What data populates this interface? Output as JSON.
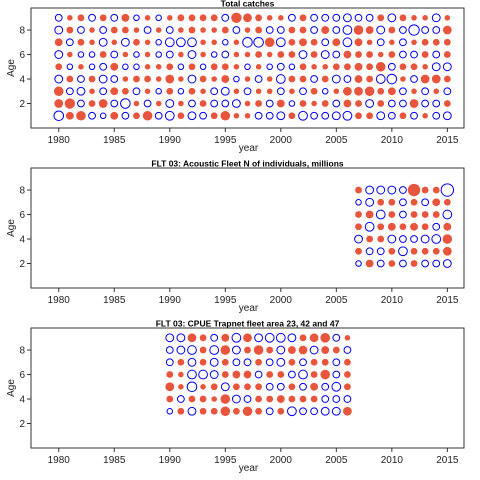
{
  "chart_data": [
    {
      "type": "bubble",
      "title": "Total catches",
      "xlabel": "year",
      "ylabel": "Age",
      "xlim": [
        1977.5,
        2016.5
      ],
      "ylim": [
        0,
        9.8
      ],
      "xticks": [
        1980,
        1985,
        1990,
        1995,
        2000,
        2005,
        2010,
        2015
      ],
      "yticks": [
        2,
        4,
        6,
        8
      ],
      "years": [
        1980,
        1981,
        1982,
        1983,
        1984,
        1985,
        1986,
        1987,
        1988,
        1989,
        1990,
        1991,
        1992,
        1993,
        1994,
        1995,
        1996,
        1997,
        1998,
        1999,
        2000,
        2001,
        2002,
        2003,
        2004,
        2005,
        2006,
        2007,
        2008,
        2009,
        2010,
        2011,
        2012,
        2013,
        2014,
        2015
      ],
      "ages": [
        1,
        2,
        3,
        4,
        5,
        6,
        7,
        8,
        9
      ],
      "residuals": [
        [
          -0.6,
          0.5,
          0.6,
          -0.4,
          0.3,
          -0.4,
          0.4,
          -0.4,
          -0.3
        ],
        [
          0.4,
          0.7,
          -0.3,
          0.3,
          -0.2,
          0.2,
          -0.3,
          0.3,
          0.2
        ],
        [
          0.6,
          -0.3,
          -0.4,
          -0.3,
          0.2,
          -0.2,
          0.3,
          -0.3,
          0.3
        ],
        [
          -0.3,
          0.3,
          0.2,
          0.3,
          -0.2,
          -0.2,
          0.2,
          0.2,
          -0.3
        ],
        [
          -0.2,
          0.5,
          -0.3,
          -0.4,
          -0.3,
          0.3,
          -0.4,
          -0.3,
          0.3
        ],
        [
          0.4,
          -0.3,
          0.4,
          -0.3,
          0.4,
          -0.3,
          0.2,
          0.3,
          -0.3
        ],
        [
          -0.3,
          -0.6,
          0.3,
          0.2,
          -0.2,
          0.2,
          -0.4,
          0.3,
          0.4
        ],
        [
          0.3,
          0.2,
          -0.3,
          0.3,
          -0.2,
          -0.2,
          0.3,
          0.2,
          -0.2
        ],
        [
          0.6,
          -0.3,
          0.2,
          0.3,
          0.2,
          0.2,
          0.2,
          -0.3,
          0.2
        ],
        [
          -0.3,
          0.2,
          -0.2,
          0.2,
          0.2,
          -0.2,
          -0.2,
          0.2,
          -0.2
        ],
        [
          -0.5,
          -0.4,
          0.3,
          0.5,
          0.3,
          -0.3,
          -0.5,
          -0.3,
          0.2
        ],
        [
          0.3,
          0.2,
          -0.2,
          0.2,
          -0.2,
          0.2,
          -0.5,
          0.2,
          0.3
        ],
        [
          -0.4,
          -0.3,
          0.3,
          -0.4,
          0.3,
          -0.4,
          -0.5,
          0.3,
          0.3
        ],
        [
          -0.3,
          0.3,
          0.2,
          0.3,
          -0.2,
          0.2,
          0.2,
          0.2,
          0.3
        ],
        [
          0.3,
          -0.3,
          -0.3,
          0.2,
          0.3,
          -0.2,
          0.2,
          0.2,
          0.3
        ],
        [
          0.6,
          -0.3,
          -0.4,
          0.4,
          0.3,
          -0.3,
          -0.2,
          0.3,
          -0.3
        ],
        [
          0.2,
          -0.4,
          0.2,
          -0.2,
          0.2,
          0.2,
          0.2,
          -0.3,
          0.7
        ],
        [
          0.2,
          0.2,
          -0.3,
          0.2,
          -0.2,
          0.2,
          -0.6,
          0.2,
          0.5
        ],
        [
          -0.3,
          0.3,
          0.2,
          -0.3,
          0.2,
          0.3,
          -0.6,
          0.3,
          0.3
        ],
        [
          -0.3,
          -0.3,
          0.2,
          0.2,
          -0.2,
          0.2,
          0.6,
          -0.3,
          0.2
        ],
        [
          -0.4,
          0.4,
          -0.3,
          -0.5,
          -0.3,
          0.3,
          -0.5,
          -0.3,
          0.2
        ],
        [
          0.3,
          -0.2,
          0.2,
          0.3,
          -0.2,
          0.3,
          0.3,
          0.3,
          -0.3
        ],
        [
          -0.5,
          0.3,
          -0.3,
          0.3,
          0.3,
          -0.4,
          0.4,
          0.3,
          0.3
        ],
        [
          -0.3,
          0.2,
          0.3,
          -0.3,
          0.2,
          0.3,
          0.3,
          -0.3,
          -0.3
        ],
        [
          -0.3,
          0.3,
          -0.2,
          0.3,
          0.2,
          -0.4,
          -0.3,
          0.4,
          -0.3
        ],
        [
          -0.4,
          -0.3,
          0.2,
          -0.4,
          0.3,
          -0.3,
          0.4,
          -0.3,
          -0.3
        ],
        [
          -0.5,
          0.4,
          0.5,
          -0.3,
          0.3,
          0.4,
          -0.5,
          -0.5,
          -0.4
        ],
        [
          0.3,
          0.3,
          0.5,
          0.4,
          0.4,
          0.3,
          0.4,
          0.6,
          -0.3
        ],
        [
          0.3,
          -0.4,
          0.6,
          0.3,
          0.3,
          0.3,
          0.2,
          0.4,
          -0.3
        ],
        [
          -0.4,
          0.3,
          0.3,
          -0.5,
          0.6,
          0.2,
          -0.3,
          -0.4,
          0.3
        ],
        [
          -0.3,
          -0.3,
          0.4,
          -0.6,
          -0.3,
          0.3,
          0.2,
          0.3,
          -0.4
        ],
        [
          0.3,
          -0.3,
          -0.3,
          0.2,
          0.3,
          -0.3,
          -0.3,
          -0.3,
          0.3
        ],
        [
          -0.3,
          0.5,
          0.2,
          -0.3,
          0.3,
          -0.3,
          0.2,
          -0.7,
          0.2
        ],
        [
          0.2,
          -0.3,
          -0.3,
          0.5,
          0.2,
          0.3,
          0.3,
          -0.3,
          0.2
        ],
        [
          -0.3,
          -0.3,
          0.2,
          0.5,
          -0.4,
          -0.3,
          0.3,
          -0.3,
          -0.4
        ],
        [
          -0.4,
          0.3,
          -0.3,
          0.3,
          -0.4,
          0.3,
          0.3,
          0.5,
          0.2
        ]
      ]
    },
    {
      "type": "bubble",
      "title": "FLT 03: Acoustic Fleet   N of individuals, millions",
      "xlabel": "year",
      "ylabel": "Age",
      "xlim": [
        1977.5,
        2016.5
      ],
      "ylim": [
        0,
        9.8
      ],
      "xticks": [
        1980,
        1985,
        1990,
        1995,
        2000,
        2005,
        2010,
        2015
      ],
      "yticks": [
        2,
        4,
        6,
        8
      ],
      "years": [
        2007,
        2008,
        2009,
        2010,
        2011,
        2012,
        2013,
        2014,
        2015
      ],
      "ages": [
        2,
        3,
        4,
        5,
        6,
        7,
        8
      ],
      "residuals": [
        [
          -0.2,
          0.3,
          -0.4,
          0.3,
          0.3,
          -0.2,
          0.3
        ],
        [
          0.4,
          -0.3,
          0.3,
          -0.5,
          0.4,
          -0.4,
          -0.4
        ],
        [
          -0.3,
          -0.3,
          0.3,
          0.3,
          -0.5,
          0.3,
          -0.4
        ],
        [
          0.3,
          0.3,
          -0.4,
          0.4,
          0.3,
          0.3,
          -0.4
        ],
        [
          -0.3,
          -0.5,
          -0.3,
          0.3,
          -0.3,
          -0.3,
          -0.3
        ],
        [
          0.3,
          0.3,
          -0.3,
          0.4,
          0.3,
          0.3,
          1.0
        ],
        [
          -0.3,
          0.3,
          -0.4,
          0.3,
          0.3,
          -0.3,
          0.3
        ],
        [
          -0.3,
          0.3,
          -0.5,
          -0.3,
          0.3,
          0.4,
          0.3
        ],
        [
          -0.4,
          0.5,
          0.6,
          0.4,
          -0.5,
          0.3,
          -1.0
        ]
      ]
    },
    {
      "type": "bubble",
      "title": "FLT 03: CPUE Trapnet fleet area 23, 42 and 47",
      "xlabel": "year",
      "ylabel": "Age",
      "xlim": [
        1977.5,
        2016.5
      ],
      "ylim": [
        0,
        9.8
      ],
      "xticks": [
        1980,
        1985,
        1990,
        1995,
        2000,
        2005,
        2010,
        2015
      ],
      "yticks": [
        2,
        4,
        6,
        8
      ],
      "years": [
        1990,
        1991,
        1992,
        1993,
        1994,
        1995,
        1996,
        1997,
        1998,
        1999,
        2000,
        2001,
        2002,
        2003,
        2004,
        2005,
        2006
      ],
      "ages": [
        3,
        4,
        5,
        6,
        7,
        8,
        9
      ],
      "residuals": [
        [
          -0.2,
          0.3,
          0.5,
          0.3,
          -0.3,
          -0.3,
          -0.4
        ],
        [
          0.3,
          -0.3,
          0.2,
          0.2,
          0.3,
          -0.4,
          -0.4
        ],
        [
          -0.4,
          0.3,
          -0.6,
          -0.5,
          -0.4,
          -0.5,
          0.5
        ],
        [
          0.3,
          0.3,
          0.2,
          -0.5,
          0.3,
          0.3,
          0.3
        ],
        [
          0.3,
          0.2,
          0.3,
          -0.4,
          -0.4,
          -0.5,
          -0.3
        ],
        [
          0.6,
          0.6,
          -0.4,
          0.3,
          0.3,
          0.6,
          0.4
        ],
        [
          0.3,
          -0.4,
          0.3,
          0.4,
          -0.3,
          -0.4,
          -0.5
        ],
        [
          0.6,
          -0.3,
          0.3,
          0.4,
          -0.3,
          0.3,
          0.5
        ],
        [
          0.3,
          0.3,
          0.3,
          -0.3,
          0.3,
          0.6,
          -0.4
        ],
        [
          -0.3,
          0.3,
          -0.3,
          0.3,
          -0.3,
          0.3,
          -0.5
        ],
        [
          0.3,
          0.4,
          -0.3,
          0.3,
          -0.4,
          -0.4,
          -0.5
        ],
        [
          -0.5,
          0.3,
          0.3,
          -0.3,
          0.3,
          0.4,
          -0.4
        ],
        [
          -0.3,
          0.3,
          -0.3,
          -0.5,
          -0.3,
          0.5,
          0.3
        ],
        [
          -0.3,
          0.3,
          0.4,
          0.3,
          0.3,
          -0.4,
          0.5
        ],
        [
          -0.4,
          -0.3,
          -0.3,
          0.6,
          0.3,
          0.4,
          0.6
        ],
        [
          -0.4,
          -0.3,
          -0.5,
          -0.3,
          -0.3,
          0.3,
          -0.3
        ],
        [
          0.5,
          -0.3,
          0.3,
          0.3,
          0.3,
          -0.3,
          0.2
        ]
      ]
    }
  ],
  "colors": {
    "positive": "#e8553d",
    "negative": "#0000ee",
    "axis": "#333333"
  }
}
